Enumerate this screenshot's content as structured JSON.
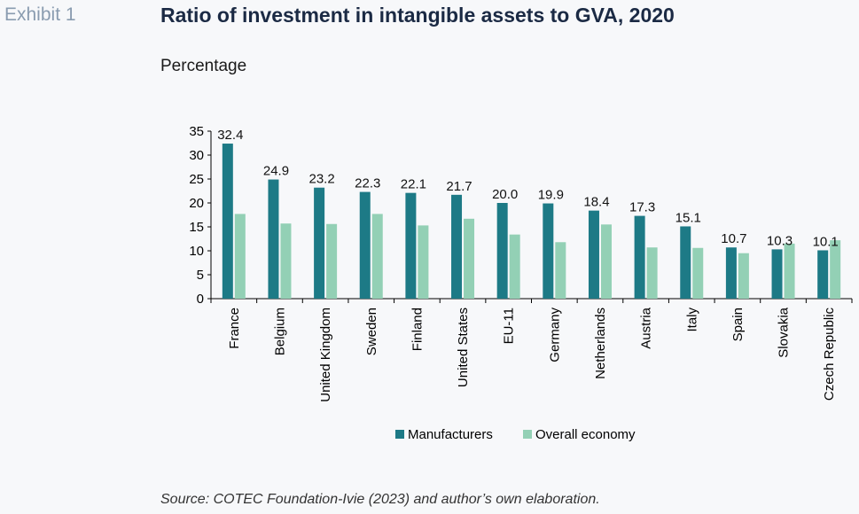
{
  "exhibit_label": "Exhibit 1",
  "title": "Ratio of investment in intangible assets to GVA, 2020",
  "subtitle": "Percentage",
  "source": "Source: COTEC Foundation-Ivie (2023) and author’s own elaboration.",
  "colors": {
    "manufacturers": "#1d7a86",
    "overall": "#93d0b5",
    "axis": "#000000"
  },
  "chart_data": {
    "type": "bar",
    "categories": [
      "France",
      "Belgium",
      "United Kingdom",
      "Sweden",
      "Finland",
      "United States",
      "EU-11",
      "Germany",
      "Netherlands",
      "Austria",
      "Italy",
      "Spain",
      "Slovakia",
      "Czech Republic"
    ],
    "series": [
      {
        "name": "Manufacturers",
        "values": [
          32.4,
          24.9,
          23.2,
          22.3,
          22.1,
          21.7,
          20.0,
          19.9,
          18.4,
          17.3,
          15.1,
          10.7,
          10.3,
          10.1
        ]
      },
      {
        "name": "Overall economy",
        "values": [
          17.7,
          15.7,
          15.6,
          17.7,
          15.3,
          16.7,
          13.4,
          11.8,
          15.5,
          10.7,
          10.6,
          9.5,
          11.5,
          12.2
        ]
      }
    ],
    "data_labels": [
      "32.4",
      "24.9",
      "23.2",
      "22.3",
      "22.1",
      "21.7",
      "20.0",
      "19.9",
      "18.4",
      "17.3",
      "15.1",
      "10.7",
      "10.3",
      "10.1"
    ],
    "yticks": [
      "0",
      "5",
      "10",
      "15",
      "20",
      "25",
      "30",
      "35"
    ],
    "ylim": [
      0,
      35
    ],
    "legend_position": "bottom",
    "grid": false
  }
}
